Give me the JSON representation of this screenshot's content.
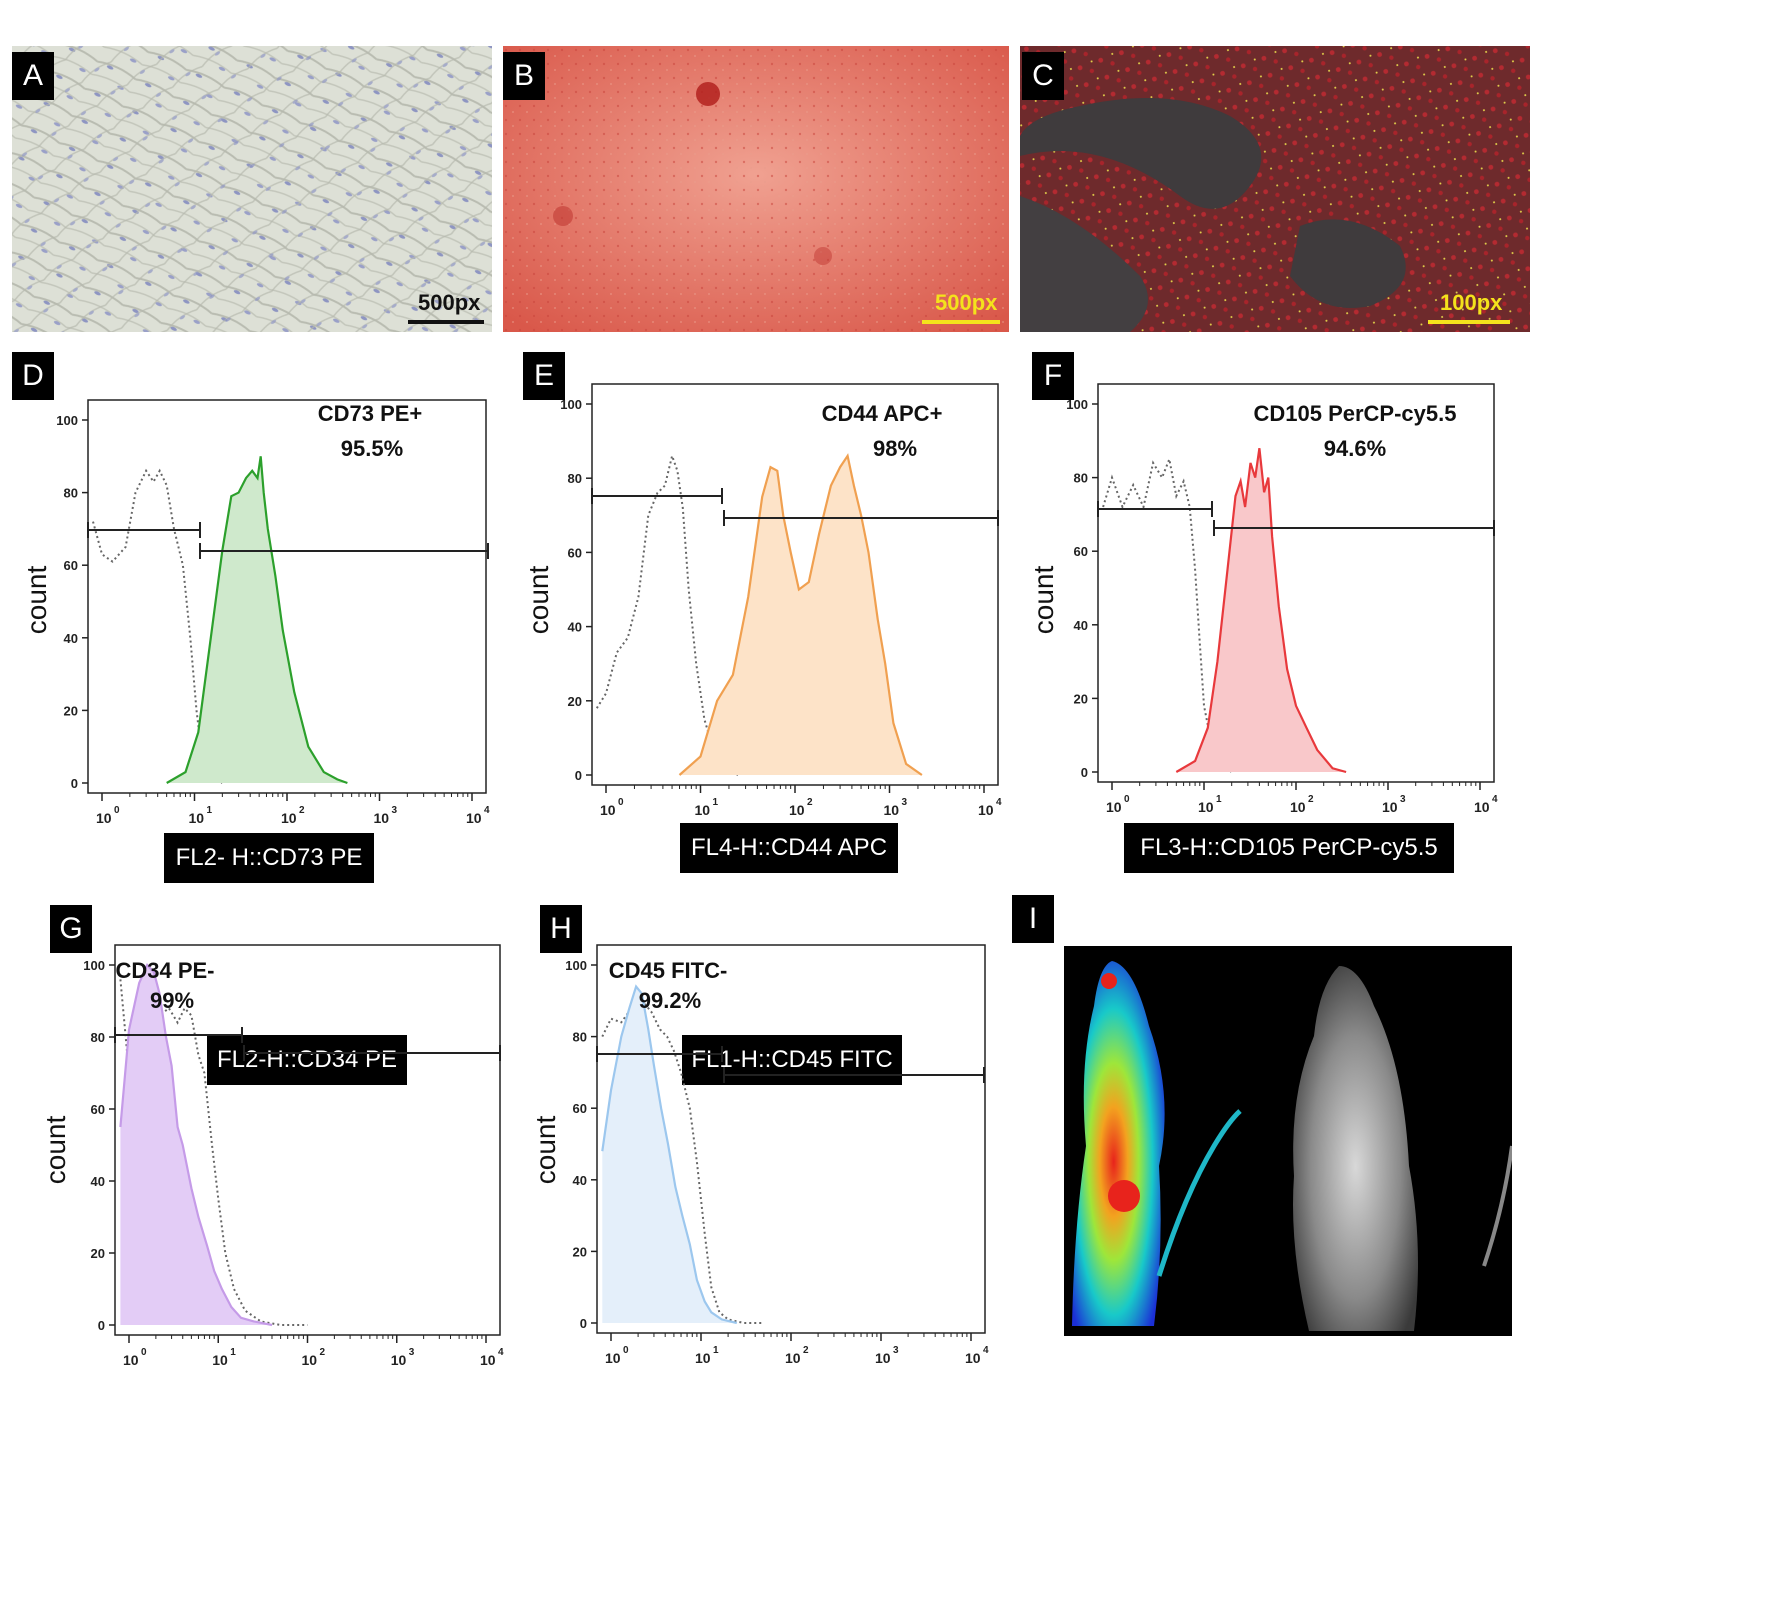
{
  "photos": {
    "A": {
      "label": "A",
      "scale": "500px"
    },
    "B": {
      "label": "B",
      "scale": "500px"
    },
    "C": {
      "label": "C",
      "scale": "100px"
    },
    "I": {
      "label": "I"
    }
  },
  "hist_panels": [
    {
      "id": "D",
      "label": "D",
      "title": "CD73 PE+",
      "percent": "95.5%",
      "ylabel": "count",
      "xlabel": "FL2- H::CD73 PE",
      "color": "#2ca02c",
      "fill": "#cfe9cc"
    },
    {
      "id": "E",
      "label": "E",
      "title": "CD44 APC+",
      "percent": "98%",
      "ylabel": "count",
      "xlabel": "FL4-H::CD44 APC",
      "color": "#f0a050",
      "fill": "#fde3c8"
    },
    {
      "id": "F",
      "label": "F",
      "title": "CD105 PerCP-cy5.5",
      "percent": "94.6%",
      "ylabel": "count",
      "xlabel": "FL3-H::CD105 PerCP-cy5.5",
      "color": "#e8393c",
      "fill": "#f9c8ca"
    },
    {
      "id": "G",
      "label": "G",
      "title": "CD34 PE-",
      "percent": "99%",
      "ylabel": "count",
      "xlabel": "FL2-H::CD34 PE",
      "color": "#c59be8",
      "fill": "#e3ccf6"
    },
    {
      "id": "H",
      "label": "H",
      "title": "CD45 FITC-",
      "percent": "99.2%",
      "ylabel": "count",
      "xlabel": "FL1-H::CD45 FITC",
      "color": "#9cc7ee",
      "fill": "#e4effa"
    }
  ],
  "chart_data": [
    {
      "type": "area",
      "panel": "D",
      "title": "CD73 PE+",
      "ylabel": "count",
      "xlabel": "FL2- H::CD73 PE",
      "x_scale": "log",
      "xlim": [
        1,
        10000
      ],
      "ylim": [
        0,
        100
      ],
      "y_ticks": [
        "0",
        "20",
        "40",
        "60",
        "80",
        "100"
      ],
      "x_ticks": [
        "10^0",
        "10^1",
        "10^2",
        "10^3",
        "10^4"
      ],
      "annotation": "95.5%",
      "series": [
        {
          "style": "dotted",
          "x": [
            0.8,
            1,
            1.3,
            1.8,
            2.3,
            3,
            3.6,
            4.2,
            5,
            6,
            7.5,
            9,
            10.5,
            12,
            15,
            20
          ],
          "y": [
            72,
            63,
            61,
            65,
            80,
            86,
            83,
            86,
            82,
            70,
            60,
            40,
            20,
            8,
            2,
            0
          ]
        },
        {
          "style": "filled",
          "x": [
            5,
            8,
            11,
            15,
            20,
            25,
            30,
            36,
            42,
            48,
            52,
            56,
            62,
            75,
            90,
            120,
            170,
            250,
            350,
            450
          ],
          "y": [
            0,
            3,
            14,
            40,
            64,
            79,
            80,
            84,
            86,
            84,
            90,
            80,
            70,
            57,
            42,
            25,
            10,
            3,
            1,
            0
          ]
        }
      ]
    },
    {
      "type": "area",
      "panel": "E",
      "title": "CD44 APC+",
      "ylabel": "count",
      "xlabel": "FL4-H::CD44 APC",
      "x_scale": "log",
      "xlim": [
        1,
        10000
      ],
      "ylim": [
        0,
        100
      ],
      "y_ticks": [
        "0",
        "20",
        "40",
        "60",
        "80",
        "100"
      ],
      "x_ticks": [
        "10^0",
        "10^1",
        "10^2",
        "10^3",
        "10^4"
      ],
      "annotation": "98%",
      "series": [
        {
          "style": "dotted",
          "x": [
            0.8,
            1,
            1.3,
            1.7,
            2.2,
            2.8,
            3.5,
            4.2,
            5,
            5.7,
            6.5,
            7.5,
            9,
            11,
            14,
            18,
            25
          ],
          "y": [
            18,
            22,
            33,
            37,
            48,
            70,
            76,
            78,
            86,
            82,
            72,
            50,
            30,
            15,
            6,
            2,
            0
          ]
        },
        {
          "style": "filled",
          "x": [
            6,
            10,
            15,
            22,
            32,
            45,
            55,
            65,
            75,
            90,
            110,
            140,
            180,
            240,
            300,
            360,
            420,
            500,
            600,
            750,
            900,
            1100,
            1500,
            2200
          ],
          "y": [
            0,
            5,
            20,
            27,
            48,
            75,
            83,
            82,
            70,
            60,
            50,
            52,
            65,
            78,
            83,
            86,
            78,
            70,
            60,
            42,
            30,
            14,
            3,
            0
          ]
        }
      ]
    },
    {
      "type": "area",
      "panel": "F",
      "title": "CD105 PerCP-cy5.5",
      "ylabel": "count",
      "xlabel": "FL3-H::CD105 PerCP-cy5.5",
      "x_scale": "log",
      "xlim": [
        1,
        10000
      ],
      "ylim": [
        0,
        100
      ],
      "y_ticks": [
        "0",
        "20",
        "40",
        "60",
        "80",
        "100"
      ],
      "x_ticks": [
        "10^0",
        "10^1",
        "10^2",
        "10^3",
        "10^4"
      ],
      "annotation": "94.6%",
      "series": [
        {
          "style": "dotted",
          "x": [
            0.8,
            1,
            1.3,
            1.7,
            2.2,
            2.8,
            3.5,
            4.2,
            5,
            6,
            7,
            8,
            9,
            10,
            12,
            15,
            20
          ],
          "y": [
            72,
            80,
            72,
            78,
            72,
            84,
            80,
            85,
            75,
            79,
            72,
            55,
            35,
            18,
            8,
            2,
            0
          ]
        },
        {
          "style": "filled",
          "x": [
            5,
            8,
            11,
            14,
            18,
            22,
            25,
            28,
            32,
            36,
            40,
            45,
            50,
            55,
            65,
            80,
            100,
            130,
            170,
            250,
            350
          ],
          "y": [
            0,
            3,
            12,
            30,
            55,
            75,
            79,
            72,
            84,
            80,
            88,
            76,
            80,
            64,
            45,
            28,
            18,
            12,
            6,
            1,
            0
          ]
        }
      ]
    },
    {
      "type": "area",
      "panel": "G",
      "title": "CD34 PE-",
      "ylabel": "count",
      "xlabel": "FL2-H::CD34 PE",
      "x_scale": "log",
      "xlim": [
        1,
        10000
      ],
      "ylim": [
        0,
        100
      ],
      "y_ticks": [
        "0",
        "20",
        "40",
        "60",
        "80",
        "100"
      ],
      "x_ticks": [
        "10^0",
        "10^1",
        "10^2",
        "10^3",
        "10^4"
      ],
      "annotation": "99%",
      "series": [
        {
          "style": "dotted",
          "x": [
            0.8,
            1,
            1.3,
            1.7,
            2.2,
            2.8,
            3.5,
            4.2,
            5,
            6,
            7,
            8.5,
            10,
            12,
            15,
            20,
            30,
            50,
            100
          ],
          "y": [
            96,
            70,
            65,
            75,
            86,
            88,
            84,
            88,
            86,
            75,
            70,
            50,
            35,
            20,
            10,
            4,
            1,
            0,
            0
          ]
        },
        {
          "style": "filled",
          "x": [
            0.8,
            1,
            1.3,
            1.6,
            1.9,
            2.2,
            2.6,
            3,
            3.5,
            4,
            5,
            6,
            7.5,
            9,
            11,
            14,
            18,
            25,
            40
          ],
          "y": [
            55,
            82,
            95,
            100,
            98,
            92,
            80,
            72,
            55,
            50,
            38,
            30,
            22,
            15,
            10,
            5,
            2,
            1,
            0
          ]
        }
      ]
    },
    {
      "type": "area",
      "panel": "H",
      "title": "CD45 FITC-",
      "ylabel": "count",
      "xlabel": "FL1-H::CD45 FITC",
      "x_scale": "log",
      "xlim": [
        1,
        10000
      ],
      "ylim": [
        0,
        100
      ],
      "y_ticks": [
        "0",
        "20",
        "40",
        "60",
        "80",
        "100"
      ],
      "x_ticks": [
        "10^0",
        "10^1",
        "10^2",
        "10^3",
        "10^4"
      ],
      "annotation": "99.2%",
      "series": [
        {
          "style": "dotted",
          "x": [
            0.8,
            1,
            1.3,
            1.7,
            2.2,
            2.8,
            3.5,
            4.2,
            5,
            6,
            7.5,
            9,
            11,
            13,
            16,
            20,
            30,
            50
          ],
          "y": [
            80,
            85,
            84,
            88,
            90,
            87,
            82,
            80,
            76,
            70,
            60,
            45,
            25,
            10,
            3,
            1,
            0,
            0
          ]
        },
        {
          "style": "filled",
          "x": [
            0.8,
            1,
            1.3,
            1.6,
            1.9,
            2.2,
            2.6,
            3,
            3.6,
            4.3,
            5.2,
            6.2,
            7.5,
            9,
            11,
            13,
            17,
            25
          ],
          "y": [
            48,
            65,
            80,
            88,
            94,
            92,
            82,
            72,
            60,
            50,
            38,
            30,
            22,
            12,
            6,
            3,
            1,
            0
          ]
        }
      ]
    }
  ]
}
